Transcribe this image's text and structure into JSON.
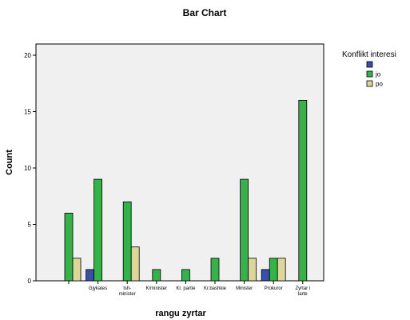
{
  "chart_data": {
    "type": "bar",
    "title": "Bar Chart",
    "xlabel": "rangu zyrtar",
    "ylabel": "Count",
    "ylim": [
      0,
      21
    ],
    "yticks": [
      0,
      5,
      10,
      15,
      20
    ],
    "grid": false,
    "legend_placement": "right",
    "legend_title": "Konflikt interesi",
    "categories": [
      [
        ""
      ],
      [
        "Gjykates"
      ],
      [
        "Ish-",
        "minister"
      ],
      [
        "K/minister"
      ],
      [
        "Kr. partie"
      ],
      [
        "Kr.bashkie"
      ],
      [
        "Minister"
      ],
      [
        "Prokuror"
      ],
      [
        "Zyrtar i",
        "larte"
      ]
    ],
    "series": [
      {
        "name": "",
        "color": "#3a4fa5",
        "values": [
          0,
          1,
          0,
          0,
          0,
          0,
          0,
          1,
          0
        ]
      },
      {
        "name": "jo",
        "color": "#35b34a",
        "values": [
          6,
          9,
          7,
          1,
          1,
          2,
          9,
          2,
          16
        ]
      },
      {
        "name": "po",
        "color": "#dcd69a",
        "values": [
          2,
          0,
          3,
          0,
          0,
          0,
          2,
          2,
          0
        ]
      }
    ],
    "plot_background": "#f0f0f0"
  }
}
